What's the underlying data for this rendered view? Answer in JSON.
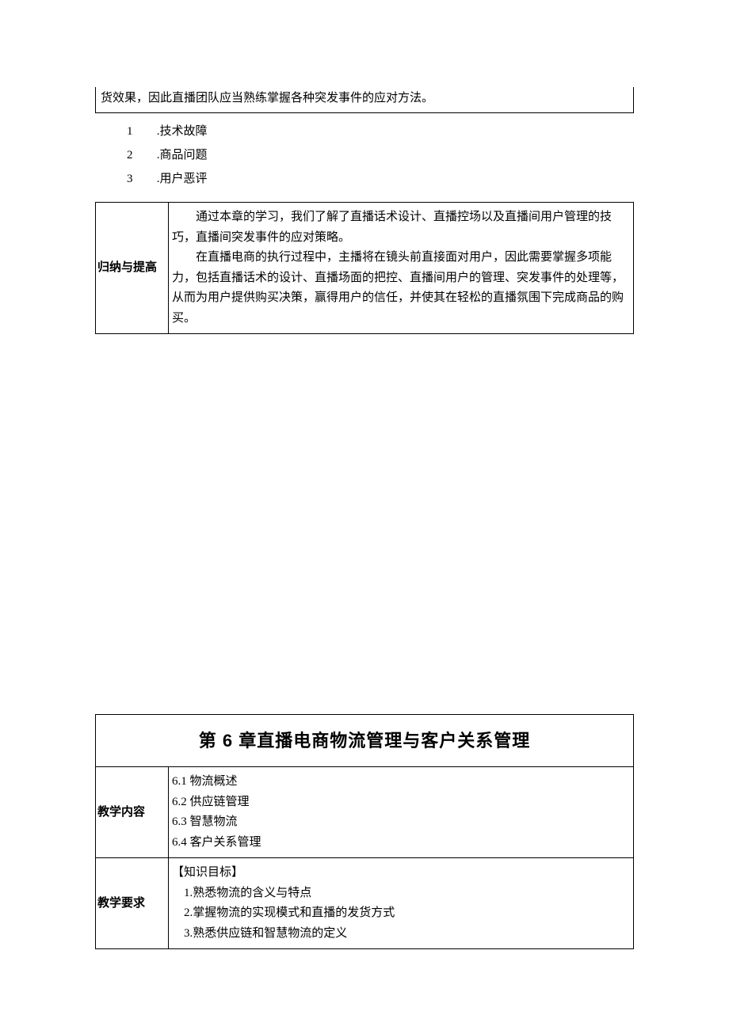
{
  "top_box_text": "货效果，因此直播团队应当熟练掌握各种突发事件的应对方法。",
  "list": {
    "items": [
      {
        "num": "1",
        "sep": " .",
        "text": "技术故障"
      },
      {
        "num": "2",
        "sep": " .",
        "text": "商品问题"
      },
      {
        "num": "3",
        "sep": " .",
        "text": "用户恶评"
      }
    ]
  },
  "summary": {
    "label": "归纳与提高",
    "para1": "通过本章的学习，我们了解了直播话术设计、直播控场以及直播间用户管理的技巧，直播间突发事件的应对策略。",
    "para2": "在直播电商的执行过程中，主播将在镜头前直接面对用户，因此需要掌握多项能力，包括直播话术的设计、直播场面的把控、直播间用户的管理、突发事件的处理等，从而为用户提供购买决策，赢得用户的信任，并使其在轻松的直播氛围下完成商品的购买。"
  },
  "chapter": {
    "title": "第 6 章直播电商物流管理与客户关系管理",
    "content_label": "教学内容",
    "toc": [
      "6.1 物流概述",
      "6.2 供应链管理",
      "6.3 智慧物流",
      "6.4 客户关系管理"
    ],
    "req_label": "教学要求",
    "req_heading": "【知识目标】",
    "req_items": [
      "1.熟悉物流的含义与特点",
      "2.掌握物流的实现模式和直播的发货方式",
      "3.熟悉供应链和智慧物流的定义"
    ]
  }
}
